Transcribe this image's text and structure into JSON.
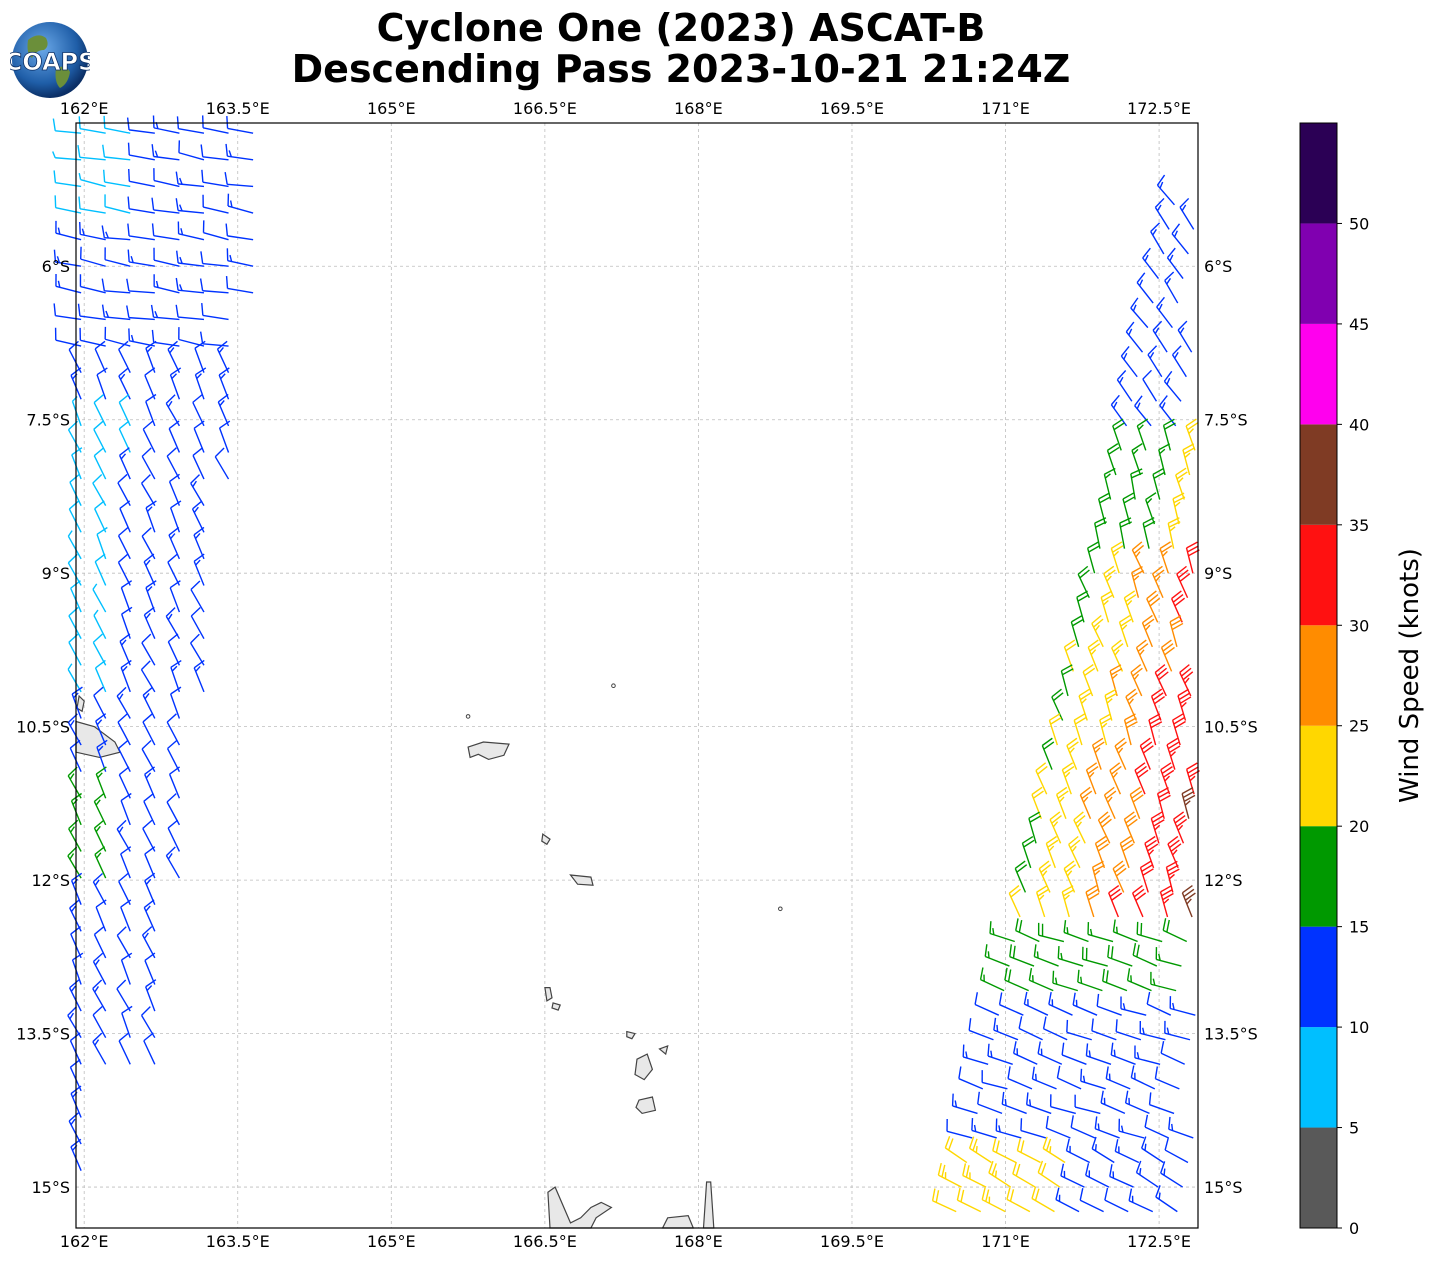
{
  "title_line1": "Cyclone One (2023) ASCAT-B",
  "title_line2": "Descending Pass 2023-10-21 21:24Z",
  "logo_text": "COAPS",
  "x_ticks": [
    "162°E",
    "163.5°E",
    "165°E",
    "166.5°E",
    "168°E",
    "169.5°E",
    "171°E",
    "172.5°E"
  ],
  "y_ticks": [
    "6°S",
    "7.5°S",
    "9°S",
    "10.5°S",
    "12°S",
    "13.5°S",
    "15°S"
  ],
  "colorbar": {
    "label": "Wind Speed (knots)",
    "ticks": [
      "0",
      "5",
      "10",
      "15",
      "20",
      "25",
      "30",
      "35",
      "40",
      "45",
      "50"
    ],
    "colors": [
      "#595959",
      "#00bfff",
      "#0033ff",
      "#009900",
      "#ffd700",
      "#ff8c00",
      "#ff1111",
      "#7f3b24",
      "#ff00ee",
      "#8000b0",
      "#2b0055"
    ]
  },
  "map_extent": {
    "lon_min": 161.92,
    "lon_max": 172.88,
    "lat_min": -15.4,
    "lat_max": -4.6
  },
  "chart_data": {
    "type": "map",
    "title": "Cyclone One (2023) ASCAT-B Descending Pass 2023-10-21 21:24Z",
    "projection": "PlateCarree",
    "grid": true,
    "colorbar_label": "Wind Speed (knots)",
    "colorbar_range": [
      0,
      55
    ],
    "swaths": [
      {
        "name": "west",
        "dominant_speed_kt": "5-15",
        "direction": "easterly to southeasterly"
      },
      {
        "name": "east",
        "dominant_speed_kt": "10-35",
        "direction": "southeasterly to easterly, max near 30-35 kt around 10.7°S 172.5°E"
      }
    ]
  }
}
